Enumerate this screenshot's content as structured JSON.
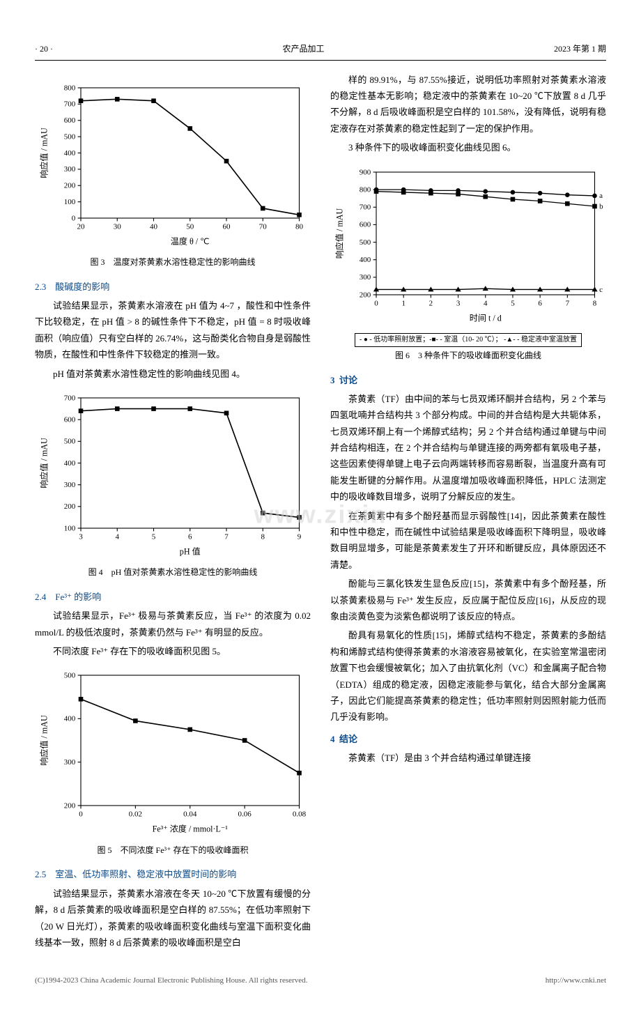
{
  "watermark": "www.zixin",
  "header": {
    "page_no": "20",
    "journal": "农产品加工",
    "issue": "2023 年第 1 期"
  },
  "left": {
    "fig3": {
      "type": "line",
      "x": [
        20,
        30,
        40,
        50,
        60,
        70,
        80
      ],
      "y": [
        720,
        730,
        720,
        550,
        350,
        60,
        20
      ],
      "xlim": [
        20,
        80
      ],
      "ylim": [
        0,
        800
      ],
      "xtick_step": 10,
      "ytick_step": 100,
      "xlabel": "温度 θ / ℃",
      "ylabel": "响应值 / mAU",
      "marker": "square",
      "marker_size": 6,
      "line_width": 1.5,
      "color": "#000000",
      "grid": false,
      "font_size": 10
    },
    "fig3_caption": "图 3　温度对茶黄素水溶性稳定性的影响曲线",
    "s23_title": "2.3　酸碱度的影响",
    "p23_1": "试验结果显示，茶黄素水溶液在 pH 值为 4~7 ，酸性和中性条件下比较稳定，在 pH 值 > 8 的碱性条件下不稳定，pH 值 = 8 时吸收峰面积（响应值）只有空白样的 26.74%，这与酚类化合物自身是弱酸性物质，在酸性和中性条件下较稳定的推测一致。",
    "p23_2": "pH 值对茶黄素水溶性稳定性的影响曲线见图 4。",
    "fig4": {
      "type": "line",
      "x": [
        3,
        4,
        5,
        6,
        7,
        8,
        9
      ],
      "y": [
        640,
        650,
        650,
        650,
        630,
        170,
        150
      ],
      "xlim": [
        3,
        9
      ],
      "ylim": [
        100,
        700
      ],
      "xtick_step": 1,
      "ytick_step": 100,
      "xlabel": "pH 值",
      "ylabel": "响应值 / mAU",
      "marker": "square",
      "marker_size": 6,
      "line_width": 1.5,
      "color": "#000000",
      "grid": false,
      "font_size": 10
    },
    "fig4_caption": "图 4　pH 值对茶黄素水溶性稳定性的影响曲线",
    "s24_title": "2.4　Fe³⁺ 的影响",
    "p24_1": "试验结果显示，Fe³⁺ 极易与茶黄素反应，当 Fe³⁺ 的浓度为 0.02 mmol/L 的极低浓度时，茶黄素仍然与 Fe³⁺ 有明显的反应。",
    "p24_2": "不同浓度 Fe³⁺ 存在下的吸收峰面积见图 5。",
    "fig5": {
      "type": "line",
      "x": [
        0,
        0.02,
        0.04,
        0.06,
        0.08
      ],
      "y": [
        445,
        395,
        375,
        350,
        275
      ],
      "xlim": [
        0,
        0.08
      ],
      "ylim": [
        200,
        500
      ],
      "xtick_step": 0.02,
      "ytick_step": 100,
      "xlabel": "Fe³⁺ 浓度 / mmol·L⁻¹",
      "ylabel": "响应值 / mAU",
      "marker": "square",
      "marker_size": 6,
      "line_width": 1.5,
      "color": "#000000",
      "grid": false,
      "font_size": 10
    },
    "fig5_caption": "图 5　不同浓度 Fe³⁺ 存在下的吸收峰面积",
    "s25_title": "2.5　室温、低功率照射、稳定液中放置时间的影响",
    "p25_1": "试验结果显示，茶黄素水溶液在冬天 10~20 ℃下放置有缓慢的分解，8 d 后茶黄素的吸收峰面积是空白样的 87.55%；在低功率照射下（20 W 日光灯），茶黄素的吸收峰面积变化曲线与室温下面积变化曲线基本一致，照射 8 d 后茶黄素的吸收峰面积是空白"
  },
  "right": {
    "p_cont": "样的 89.91%，与 87.55%接近，说明低功率照射对茶黄素水溶液的稳定性基本无影响；稳定液中的茶黄素在 10~20 ℃下放置 8 d 几乎不分解，8 d 后吸收峰面积是空白样的 101.58%，没有降低，说明有稳定液存在对茶黄素的稳定性起到了一定的保护作用。",
    "p_fig6_ref": "3 种条件下的吸收峰面积变化曲线见图 6。",
    "fig6": {
      "type": "line",
      "x": [
        0,
        1,
        2,
        3,
        4,
        5,
        6,
        7,
        8
      ],
      "series": [
        {
          "label": "a",
          "y": [
            800,
            800,
            795,
            795,
            790,
            785,
            780,
            770,
            765
          ],
          "marker": "circle",
          "color": "#000000"
        },
        {
          "label": "b",
          "y": [
            790,
            785,
            780,
            775,
            760,
            745,
            735,
            720,
            705
          ],
          "marker": "square",
          "color": "#000000"
        },
        {
          "label": "c",
          "y": [
            230,
            230,
            230,
            230,
            235,
            230,
            230,
            230,
            230
          ],
          "marker": "triangle",
          "color": "#000000"
        }
      ],
      "xlim": [
        0,
        8
      ],
      "ylim": [
        200,
        900
      ],
      "xtick_step": 1,
      "ytick_step": 100,
      "xlabel": "时间 t / d",
      "ylabel": "响应值 / mAU",
      "line_width": 1.2,
      "font_size": 10
    },
    "fig6_legend": "- ● - 低功率照射放置；-■- - 室温（10- 20 ℃）；\n-▲- - 稳定液中室温放置",
    "fig6_caption": "图 6　3 种条件下的吸收峰面积变化曲线",
    "s3_no": "3",
    "s3_title": "讨论",
    "p3_1": "茶黄素（TF）由中间的苯与七员双烯环酮并合结构，另 2 个苯与四氢吡喃并合结构共 3 个部分构成。中间的并合结构是大共轭体系，七员双烯环酮上有一个烯醇式结构；另 2 个并合结构通过单键与中间并合结构相连，在 2 个并合结构与单键连接的两旁都有氧吸电子基，这些因素使得单键上电子云向两端转移而容易断裂，当温度升高有可能发生断键的分解作用。从温度增加吸收峰面积降低，HPLC 法测定中的吸收峰数目增多，说明了分解反应的发生。",
    "p3_2": "在茶黄素中有多个酚羟基而显示弱酸性[14]，因此茶黄素在酸性和中性中稳定，而在碱性中试验结果是吸收峰面积下降明显，吸收峰数目明显增多，可能是茶黄素发生了开环和断键反应，具体原因还不清楚。",
    "p3_3": "酚能与三氯化铁发生显色反应[15]，茶黄素中有多个酚羟基，所以茶黄素极易与 Fe³⁺ 发生反应，反应属于配位反应[16]，从反应的现象由淡黄色变为淡紫色都说明了该反应的特点。",
    "p3_4": "酚具有易氧化的性质[15]，烯醇式结构不稳定，茶黄素的多酚结构和烯醇式结构使得茶黄素的水溶液容易被氧化，在实验室常温密闭放置下也会缓慢被氧化；加入了由抗氧化剂（VC）和金属离子配合物（EDTA）组成的稳定液，因稳定液能参与氧化，结合大部分金属离子，因此它们能提高茶黄素的稳定性；低功率照射则因照射能力低而几乎没有影响。",
    "s4_no": "4",
    "s4_title": "结论",
    "p4_1": "茶黄素（TF）是由 3 个并合结构通过单键连接"
  },
  "footer": {
    "copyright": "(C)1994-2023 China Academic Journal Electronic Publishing House. All rights reserved.",
    "url": "http://www.cnki.net"
  }
}
